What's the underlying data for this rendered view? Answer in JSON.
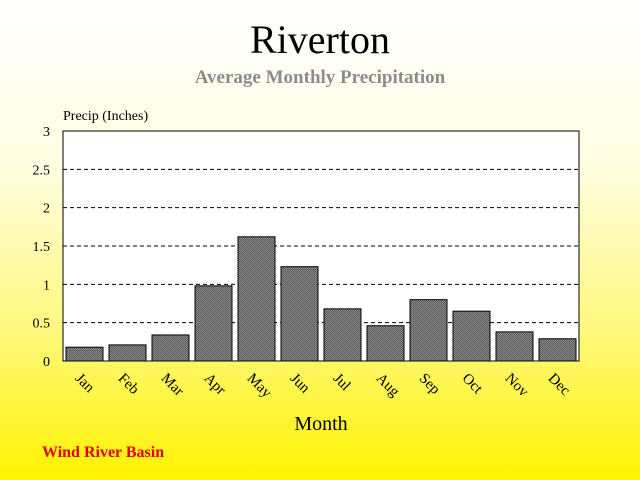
{
  "chart_data": {
    "type": "bar",
    "title": "Riverton",
    "subtitle": "Average Monthly Precipitation",
    "ylabel": "Precip (Inches)",
    "xlabel": "Month",
    "categories": [
      "Jan",
      "Feb",
      "Mar",
      "Apr",
      "May",
      "Jun",
      "Jul",
      "Aug",
      "Sep",
      "Oct",
      "Nov",
      "Dec"
    ],
    "values": [
      0.18,
      0.21,
      0.34,
      0.98,
      1.62,
      1.23,
      0.68,
      0.46,
      0.8,
      0.65,
      0.38,
      0.29
    ],
    "ylim": [
      0,
      3
    ],
    "yticks": [
      "0",
      "0.5",
      "1",
      "1.5",
      "2",
      "2.5",
      "3"
    ],
    "grid": true,
    "bar_color": "#808080",
    "plot_background": "#ffffff"
  },
  "footer": "Wind River Basin"
}
